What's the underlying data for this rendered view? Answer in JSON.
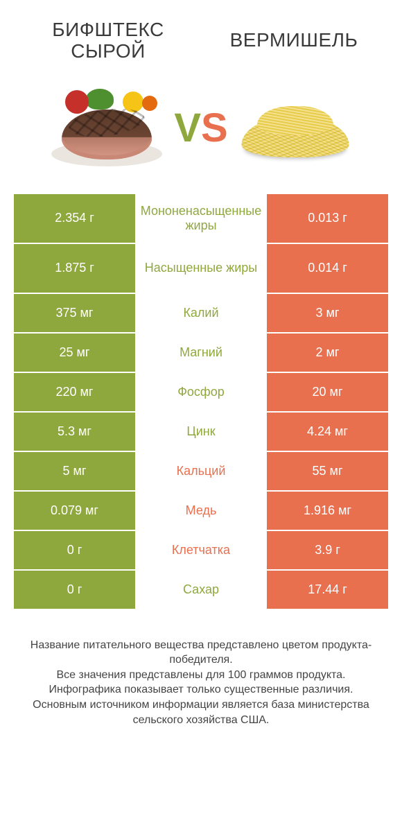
{
  "colors": {
    "green": "#8fa83d",
    "orange": "#e8704f",
    "text": "#3a3a3a",
    "white": "#ffffff"
  },
  "header": {
    "left_title_line1": "БИФШТЕКС",
    "left_title_line2": "СЫРОЙ",
    "right_title": "ВЕРМИШЕЛЬ",
    "vs_v": "V",
    "vs_s": "S"
  },
  "rows": [
    {
      "label": "Мононенасыщенные жиры",
      "left": "2.354 г",
      "right": "0.013 г",
      "winner": "left",
      "tall": true
    },
    {
      "label": "Насыщенные жиры",
      "left": "1.875 г",
      "right": "0.014 г",
      "winner": "left",
      "tall": true
    },
    {
      "label": "Калий",
      "left": "375 мг",
      "right": "3 мг",
      "winner": "left"
    },
    {
      "label": "Магний",
      "left": "25 мг",
      "right": "2 мг",
      "winner": "left"
    },
    {
      "label": "Фосфор",
      "left": "220 мг",
      "right": "20 мг",
      "winner": "left"
    },
    {
      "label": "Цинк",
      "left": "5.3 мг",
      "right": "4.24 мг",
      "winner": "left"
    },
    {
      "label": "Кальций",
      "left": "5 мг",
      "right": "55 мг",
      "winner": "right"
    },
    {
      "label": "Медь",
      "left": "0.079 мг",
      "right": "1.916 мг",
      "winner": "right"
    },
    {
      "label": "Клетчатка",
      "left": "0 г",
      "right": "3.9 г",
      "winner": "right"
    },
    {
      "label": "Сахар",
      "left": "0 г",
      "right": "17.44 г",
      "winner": "left"
    }
  ],
  "footer": {
    "l1": "Название питательного вещества представлено цветом продукта-победителя.",
    "l2": "Все значения представлены для 100 граммов продукта.",
    "l3": "Инфографика показывает только существенные различия.",
    "l4": "Основным источником информации является база министерства сельского хозяйства США."
  }
}
